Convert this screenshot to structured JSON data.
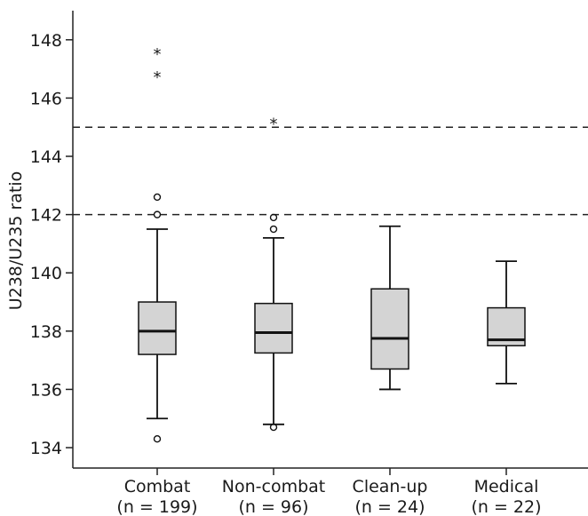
{
  "chart_data": {
    "type": "box",
    "ylabel": "U238/U235 ratio",
    "ylim": [
      133.3,
      149
    ],
    "yticks": [
      134,
      136,
      138,
      140,
      142,
      144,
      146,
      148
    ],
    "reference_lines": [
      142,
      145
    ],
    "box_fill": "#d4d4d4",
    "series": [
      {
        "category": "Combat",
        "n_label": "(n = 199)",
        "whisker_low": 135.0,
        "q1": 137.2,
        "median": 138.0,
        "q3": 139.0,
        "whisker_high": 141.5,
        "outliers": [
          134.3,
          142.0,
          142.6
        ],
        "extremes": [
          146.8,
          147.6
        ]
      },
      {
        "category": "Non-combat",
        "n_label": "(n = 96)",
        "whisker_low": 134.8,
        "q1": 137.25,
        "median": 137.95,
        "q3": 138.95,
        "whisker_high": 141.2,
        "outliers": [
          134.7,
          141.5,
          141.9
        ],
        "extremes": [
          145.2
        ]
      },
      {
        "category": "Clean-up",
        "n_label": "(n = 24)",
        "whisker_low": 136.0,
        "q1": 136.7,
        "median": 137.75,
        "q3": 139.45,
        "whisker_high": 141.6,
        "outliers": [],
        "extremes": []
      },
      {
        "category": "Medical",
        "n_label": "(n = 22)",
        "whisker_low": 136.2,
        "q1": 137.5,
        "median": 137.7,
        "q3": 138.8,
        "whisker_high": 140.4,
        "outliers": [],
        "extremes": []
      }
    ]
  }
}
